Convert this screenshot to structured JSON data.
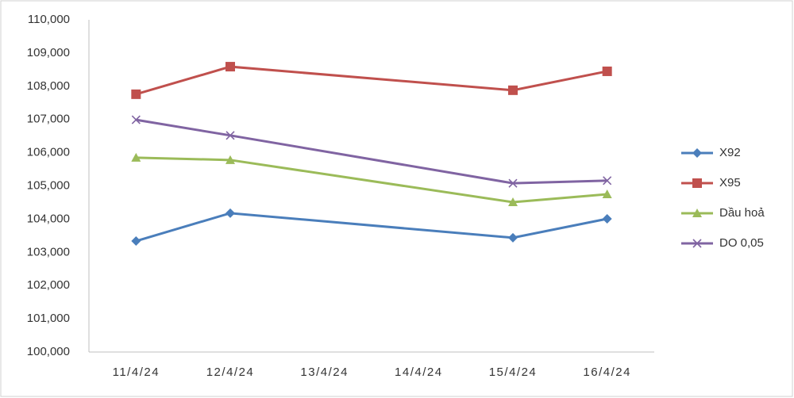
{
  "chart_data": {
    "type": "line",
    "x": [
      "11/4/24",
      "12/4/24",
      "15/4/24",
      "16/4/24"
    ],
    "xticks": [
      "11/4/24",
      "12/4/24",
      "13/4/24",
      "14/4/24",
      "15/4/24",
      "16/4/24"
    ],
    "series": [
      {
        "name": "X92",
        "color": "#4a7ebb",
        "marker": "diamond",
        "values": [
          103340,
          104180,
          103440,
          104010
        ]
      },
      {
        "name": "X95",
        "color": "#c0504d",
        "marker": "square",
        "values": [
          107760,
          108590,
          107880,
          108450
        ]
      },
      {
        "name": "Dầu hoả",
        "color": "#9bbb59",
        "marker": "triangle",
        "values": [
          105850,
          105780,
          104510,
          104750
        ]
      },
      {
        "name": "DO 0,05",
        "color": "#8064a2",
        "marker": "x",
        "values": [
          106990,
          106520,
          105080,
          105160
        ]
      }
    ],
    "ylim": [
      100000,
      110000
    ],
    "yticks": [
      {
        "value": 100000,
        "label": "100,000"
      },
      {
        "value": 101000,
        "label": "101,000"
      },
      {
        "value": 102000,
        "label": "102,000"
      },
      {
        "value": 103000,
        "label": "103,000"
      },
      {
        "value": 104000,
        "label": "104,000"
      },
      {
        "value": 105000,
        "label": "105,000"
      },
      {
        "value": 106000,
        "label": "106,000"
      },
      {
        "value": 107000,
        "label": "107,000"
      },
      {
        "value": 108000,
        "label": "108,000"
      },
      {
        "value": 109000,
        "label": "109,000"
      },
      {
        "value": 110000,
        "label": "110,000"
      }
    ],
    "grid": false,
    "legend": "right"
  }
}
